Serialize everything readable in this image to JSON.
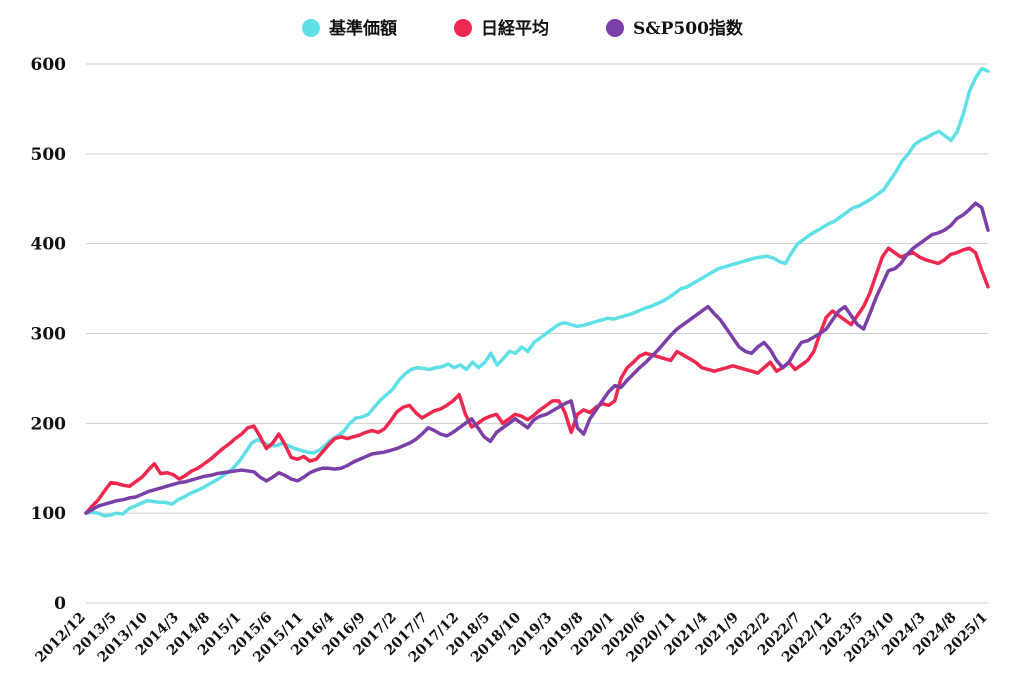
{
  "chart_data": {
    "type": "line",
    "xlabel": "",
    "ylabel": "",
    "ylim": [
      0,
      600
    ],
    "yticks": [
      0,
      100,
      200,
      300,
      400,
      500,
      600
    ],
    "grid": "horizontal",
    "legend_position": "top-center",
    "x_tick_labels": [
      "2012/12",
      "2013/5",
      "2013/10",
      "2014/3",
      "2014/8",
      "2015/1",
      "2015/6",
      "2015/11",
      "2016/4",
      "2016/9",
      "2017/2",
      "2017/7",
      "2017/12",
      "2018/5",
      "2018/10",
      "2019/3",
      "2019/8",
      "2020/1",
      "2020/6",
      "2020/11",
      "2021/4",
      "2021/9",
      "2022/2",
      "2022/7",
      "2022/12",
      "2023/5",
      "2023/10",
      "2024/3",
      "2024/8",
      "2025/1"
    ],
    "series": [
      {
        "name": "基準価額",
        "color": "#5ee0e6",
        "values": [
          100,
          101,
          100,
          97,
          98,
          100,
          99,
          105,
          108,
          111,
          114,
          113,
          112,
          112,
          110,
          115,
          118,
          122,
          125,
          128,
          132,
          136,
          140,
          145,
          150,
          158,
          168,
          178,
          182,
          178,
          175,
          175,
          178,
          175,
          172,
          170,
          168,
          167,
          170,
          176,
          182,
          186,
          191,
          200,
          206,
          207,
          210,
          218,
          226,
          232,
          238,
          248,
          255,
          260,
          262,
          261,
          260,
          262,
          263,
          266,
          262,
          265,
          260,
          268,
          262,
          268,
          278,
          265,
          272,
          280,
          278,
          285,
          280,
          290,
          295,
          300,
          305,
          310,
          312,
          310,
          308,
          309,
          311,
          313,
          315,
          317,
          316,
          318,
          320,
          322,
          325,
          328,
          330,
          333,
          336,
          340,
          345,
          350,
          352,
          356,
          360,
          364,
          368,
          372,
          374,
          376,
          378,
          380,
          382,
          384,
          385,
          386,
          384,
          380,
          378,
          390,
          400,
          405,
          410,
          414,
          418,
          422,
          425,
          430,
          435,
          440,
          442,
          446,
          450,
          455,
          460,
          470,
          480,
          492,
          500,
          510,
          515,
          518,
          522,
          525,
          520,
          515,
          525,
          545,
          570,
          585,
          595,
          592
        ]
      },
      {
        "name": "日経平均",
        "color": "#f0274f",
        "values": [
          100,
          108,
          115,
          125,
          134,
          133,
          131,
          130,
          135,
          140,
          148,
          155,
          144,
          145,
          143,
          138,
          142,
          147,
          150,
          155,
          160,
          166,
          172,
          177,
          183,
          188,
          195,
          197,
          185,
          172,
          178,
          188,
          176,
          162,
          160,
          163,
          158,
          160,
          168,
          176,
          183,
          185,
          183,
          185,
          187,
          190,
          192,
          190,
          194,
          203,
          213,
          218,
          220,
          212,
          206,
          210,
          214,
          216,
          220,
          225,
          232,
          210,
          196,
          200,
          205,
          208,
          210,
          200,
          205,
          210,
          208,
          204,
          209,
          215,
          220,
          225,
          225,
          212,
          190,
          210,
          215,
          212,
          218,
          222,
          220,
          225,
          250,
          262,
          268,
          275,
          278,
          276,
          274,
          272,
          270,
          280,
          276,
          272,
          268,
          262,
          260,
          258,
          260,
          262,
          264,
          262,
          260,
          258,
          256,
          262,
          268,
          258,
          262,
          268,
          260,
          265,
          270,
          280,
          300,
          318,
          325,
          320,
          315,
          310,
          320,
          330,
          345,
          365,
          385,
          395,
          390,
          385,
          388,
          390,
          385,
          382,
          380,
          378,
          382,
          388,
          390,
          393,
          395,
          390,
          370,
          352
        ]
      },
      {
        "name": "S&P500指数",
        "color": "#7b3fa8",
        "values": [
          100,
          104,
          108,
          110,
          112,
          114,
          115,
          117,
          118,
          121,
          124,
          126,
          128,
          130,
          132,
          134,
          135,
          137,
          139,
          141,
          142,
          144,
          145,
          146,
          147,
          148,
          147,
          146,
          140,
          136,
          140,
          145,
          142,
          138,
          136,
          140,
          145,
          148,
          150,
          150,
          149,
          150,
          153,
          157,
          160,
          163,
          166,
          167,
          168,
          170,
          172,
          175,
          178,
          182,
          188,
          195,
          192,
          188,
          186,
          190,
          195,
          200,
          205,
          195,
          185,
          180,
          190,
          195,
          200,
          205,
          200,
          195,
          204,
          208,
          210,
          214,
          218,
          222,
          225,
          195,
          188,
          205,
          215,
          225,
          235,
          242,
          240,
          248,
          255,
          262,
          268,
          275,
          282,
          290,
          298,
          305,
          310,
          315,
          320,
          325,
          330,
          322,
          315,
          305,
          295,
          285,
          280,
          278,
          285,
          290,
          282,
          270,
          262,
          268,
          280,
          290,
          292,
          296,
          300,
          305,
          315,
          325,
          330,
          320,
          310,
          305,
          322,
          340,
          355,
          370,
          372,
          378,
          388,
          395,
          400,
          405,
          410,
          412,
          415,
          420,
          428,
          432,
          438,
          445,
          440,
          415
        ]
      }
    ]
  }
}
